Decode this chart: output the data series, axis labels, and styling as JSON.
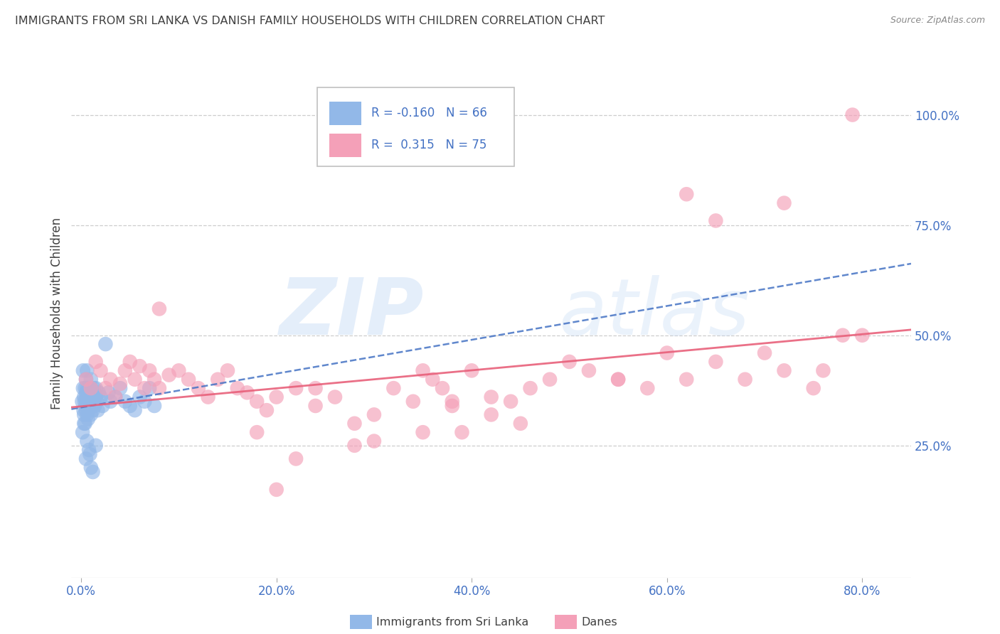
{
  "title": "IMMIGRANTS FROM SRI LANKA VS DANISH FAMILY HOUSEHOLDS WITH CHILDREN CORRELATION CHART",
  "source": "Source: ZipAtlas.com",
  "ylabel": "Family Households with Children",
  "xlabel_ticks": [
    "0.0%",
    "20.0%",
    "40.0%",
    "60.0%",
    "80.0%"
  ],
  "xlabel_values": [
    0.0,
    20.0,
    40.0,
    60.0,
    80.0
  ],
  "ylabel_ticks_right": [
    "100.0%",
    "75.0%",
    "50.0%",
    "25.0%"
  ],
  "ylabel_values": [
    100.0,
    75.0,
    50.0,
    25.0
  ],
  "ylim": [
    -5.0,
    115.0
  ],
  "xlim": [
    -1.0,
    85.0
  ],
  "legend_blue_r": "-0.160",
  "legend_blue_n": "66",
  "legend_pink_r": "0.315",
  "legend_pink_n": "75",
  "legend_label_blue": "Immigrants from Sri Lanka",
  "legend_label_pink": "Danes",
  "watermark_zip": "ZIP",
  "watermark_atlas": "atlas",
  "blue_color": "#92b8e8",
  "pink_color": "#f4a0b8",
  "blue_line_color": "#4472c4",
  "pink_line_color": "#e8607a",
  "title_color": "#404040",
  "axis_label_color": "#404040",
  "tick_color": "#4472c4",
  "grid_color": "#c8c8c8",
  "background_color": "#ffffff",
  "blue_scatter_x": [
    0.1,
    0.15,
    0.2,
    0.2,
    0.25,
    0.3,
    0.3,
    0.35,
    0.4,
    0.4,
    0.45,
    0.5,
    0.5,
    0.5,
    0.55,
    0.6,
    0.6,
    0.6,
    0.65,
    0.7,
    0.7,
    0.75,
    0.8,
    0.8,
    0.85,
    0.9,
    0.9,
    0.95,
    1.0,
    1.0,
    1.0,
    1.0,
    1.1,
    1.1,
    1.2,
    1.2,
    1.3,
    1.3,
    1.4,
    1.5,
    1.5,
    1.6,
    1.7,
    1.8,
    2.0,
    2.2,
    2.5,
    2.8,
    3.0,
    3.5,
    4.0,
    4.5,
    5.0,
    5.5,
    6.0,
    6.5,
    7.0,
    7.5,
    1.0,
    0.5,
    0.8,
    1.2,
    0.3,
    0.6,
    0.9,
    1.5
  ],
  "blue_scatter_y": [
    35,
    28,
    42,
    38,
    33,
    36,
    32,
    35,
    38,
    30,
    34,
    37,
    33,
    40,
    35,
    38,
    42,
    32,
    36,
    35,
    31,
    33,
    38,
    35,
    37,
    34,
    38,
    36,
    35,
    32,
    38,
    40,
    36,
    34,
    37,
    33,
    35,
    38,
    34,
    36,
    38,
    35,
    33,
    37,
    36,
    34,
    48,
    37,
    35,
    36,
    38,
    35,
    34,
    33,
    36,
    35,
    38,
    34,
    20,
    22,
    24,
    19,
    30,
    26,
    23,
    25
  ],
  "pink_scatter_x": [
    0.5,
    1.0,
    1.5,
    2.0,
    2.5,
    3.0,
    3.5,
    4.0,
    4.5,
    5.0,
    5.5,
    6.0,
    6.5,
    7.0,
    7.5,
    8.0,
    9.0,
    10.0,
    11.0,
    12.0,
    13.0,
    14.0,
    15.0,
    16.0,
    17.0,
    18.0,
    19.0,
    20.0,
    22.0,
    24.0,
    26.0,
    28.0,
    30.0,
    32.0,
    34.0,
    35.0,
    36.0,
    37.0,
    38.0,
    39.0,
    40.0,
    42.0,
    44.0,
    46.0,
    48.0,
    50.0,
    52.0,
    55.0,
    58.0,
    60.0,
    62.0,
    65.0,
    68.0,
    70.0,
    72.0,
    75.0,
    76.0,
    78.0,
    79.0,
    80.0,
    62.0,
    72.0,
    65.0,
    35.0,
    28.0,
    18.0,
    22.0,
    30.0,
    8.0,
    45.0,
    42.0,
    24.0,
    55.0,
    38.0,
    20.0
  ],
  "pink_scatter_y": [
    40,
    38,
    44,
    42,
    38,
    40,
    36,
    39,
    42,
    44,
    40,
    43,
    38,
    42,
    40,
    38,
    41,
    42,
    40,
    38,
    36,
    40,
    42,
    38,
    37,
    35,
    33,
    36,
    38,
    34,
    36,
    30,
    32,
    38,
    35,
    42,
    40,
    38,
    35,
    28,
    42,
    36,
    35,
    38,
    40,
    44,
    42,
    40,
    38,
    46,
    40,
    44,
    40,
    46,
    42,
    38,
    42,
    50,
    100,
    50,
    82,
    80,
    76,
    28,
    25,
    28,
    22,
    26,
    56,
    30,
    32,
    38,
    40,
    34,
    15
  ]
}
